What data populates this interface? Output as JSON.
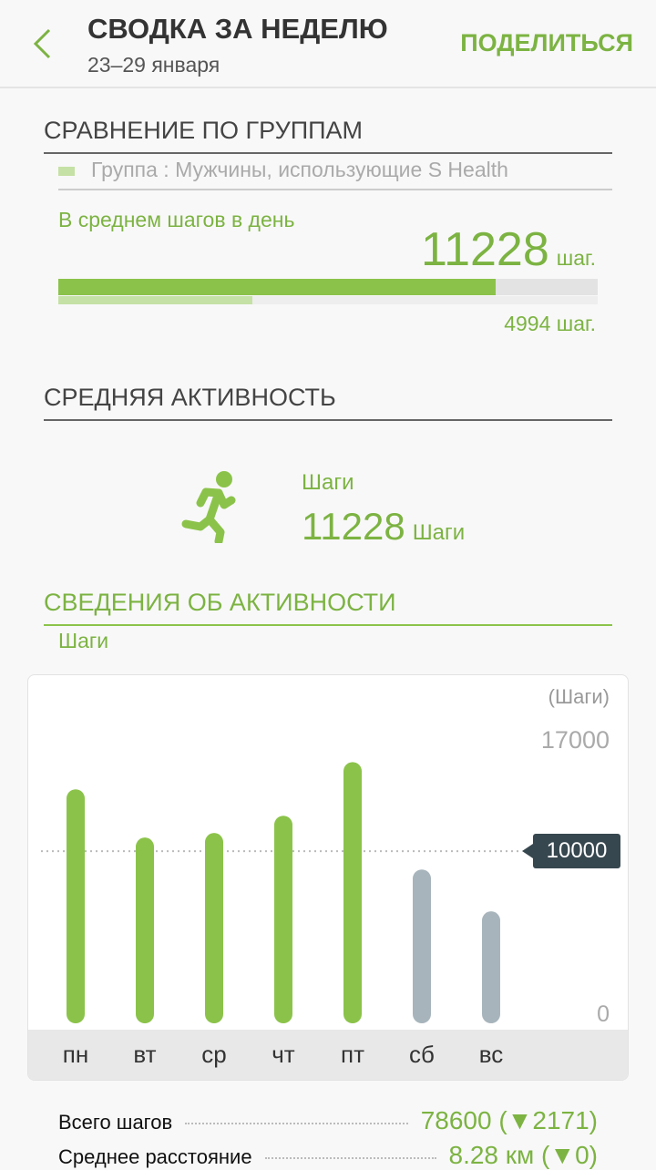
{
  "header": {
    "title": "СВОДКА ЗА НЕДЕЛЮ",
    "date_range": "23–29 января",
    "share_label": "ПОДЕЛИТЬСЯ",
    "back_icon": "chevron-left-icon"
  },
  "comparison": {
    "title": "СРАВНЕНИЕ ПО ГРУППАМ",
    "group_label": "Группа : Мужчины, использующие S Health",
    "metric_label": "В среднем шагов в день",
    "user_value": "11228",
    "user_unit": "шаг.",
    "group_value": "4994 шаг.",
    "user_fraction": 0.81,
    "group_fraction": 0.36
  },
  "average": {
    "title": "СРЕДНЯЯ АКТИВНОСТЬ",
    "label": "Шаги",
    "value": "11228",
    "unit": "Шаги",
    "icon": "running-person-icon"
  },
  "details": {
    "title": "СВЕДЕНИЯ ОБ АКТИВНОСТИ",
    "subtitle": "Шаги"
  },
  "chart_data": {
    "type": "bar",
    "unit_label": "(Шаги)",
    "ylim": [
      0,
      17000
    ],
    "y_ticks": [
      "17000",
      "0"
    ],
    "target_label": "10000",
    "target": 10000,
    "categories": [
      "пн",
      "вт",
      "ср",
      "чт",
      "пт",
      "сб",
      "вс"
    ],
    "values": [
      13800,
      10840,
      11120,
      12180,
      15470,
      8880,
      6310
    ],
    "colors": {
      "weekday": "#8bc34a",
      "weekend": "#a7b4bb"
    }
  },
  "summary": [
    {
      "label": "Всего шагов",
      "value": "78600 (▼2171)"
    },
    {
      "label": "Среднее расстояние",
      "value": "8.28 км (▼0)"
    }
  ],
  "colors": {
    "accent": "#7cb342",
    "bar": "#8bc34a"
  }
}
